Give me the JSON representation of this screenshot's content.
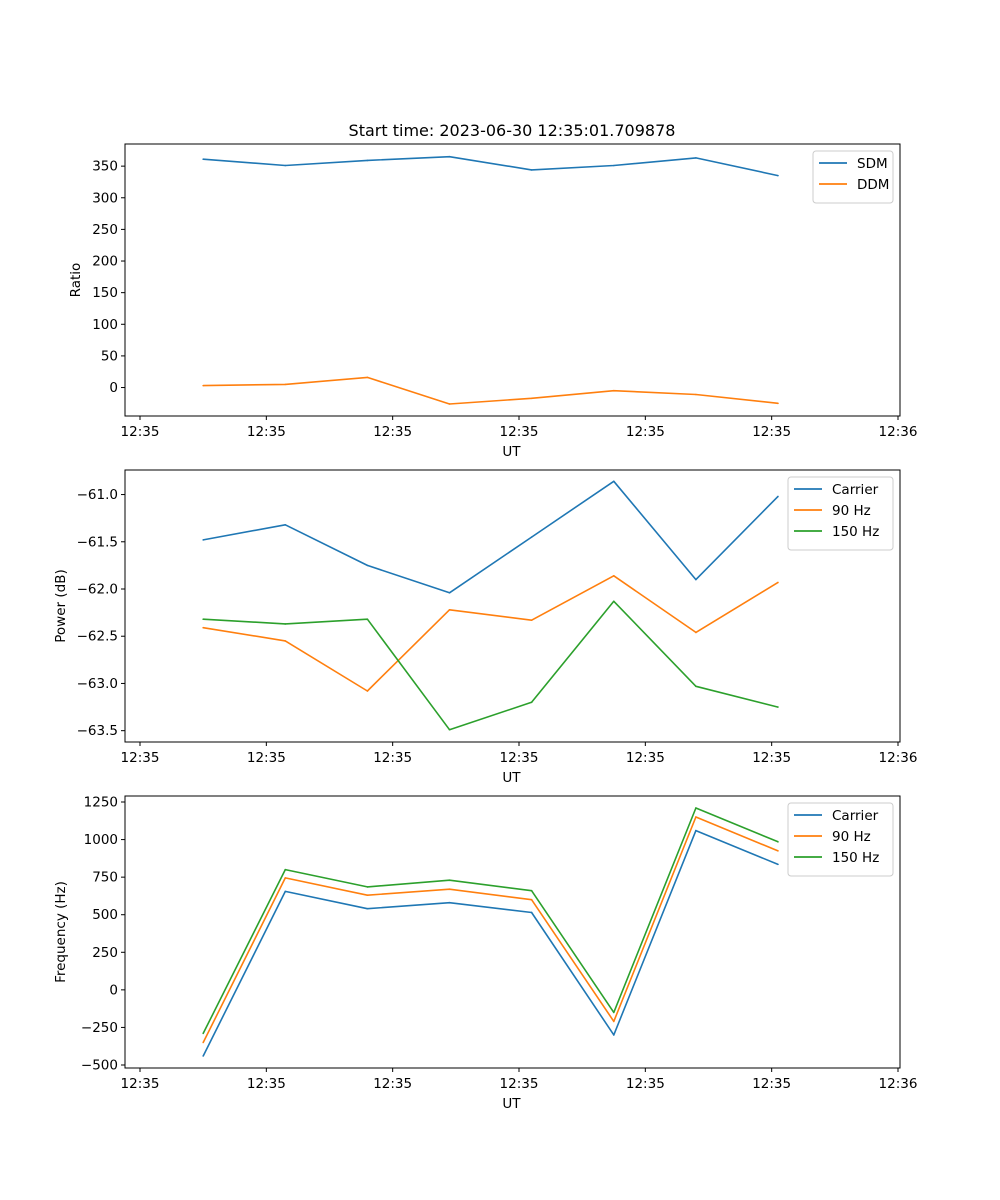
{
  "title": "Start time: 2023-06-30 12:35:01.709878",
  "chart_data": [
    {
      "type": "line",
      "xlabel": "UT",
      "ylabel": "Ratio",
      "xlim_seconds": [
        0,
        60
      ],
      "x_tick_labels": [
        "12:35",
        "12:35",
        "12:35",
        "12:35",
        "12:35",
        "12:35",
        "12:36"
      ],
      "ylim": [
        -45,
        385
      ],
      "y_ticks": [
        0,
        50,
        100,
        150,
        200,
        250,
        300,
        350
      ],
      "y_tick_labels": [
        "0",
        "50",
        "100",
        "150",
        "200",
        "250",
        "300",
        "350"
      ],
      "legend_position": "upper right",
      "grid": false,
      "x_seconds": [
        5,
        11.5,
        18,
        24.5,
        31,
        37.5,
        44,
        50.5
      ],
      "series": [
        {
          "name": "SDM",
          "color": "#1f77b4",
          "values": [
            361,
            351,
            359,
            365,
            344,
            351,
            363,
            335
          ]
        },
        {
          "name": "DDM",
          "color": "#ff7f0e",
          "values": [
            3,
            5,
            16,
            -26,
            -17,
            -5,
            -11,
            -25
          ]
        }
      ]
    },
    {
      "type": "line",
      "xlabel": "UT",
      "ylabel": "Power (dB)",
      "xlim_seconds": [
        0,
        60
      ],
      "x_tick_labels": [
        "12:35",
        "12:35",
        "12:35",
        "12:35",
        "12:35",
        "12:35",
        "12:36"
      ],
      "ylim": [
        -63.62,
        -60.74
      ],
      "y_ticks": [
        -63.5,
        -63.0,
        -62.5,
        -62.0,
        -61.5,
        -61.0
      ],
      "y_tick_labels": [
        "−63.5",
        "−63.0",
        "−62.5",
        "−62.0",
        "−61.5",
        "−61.0"
      ],
      "legend_position": "upper right",
      "grid": false,
      "x_seconds": [
        5,
        11.5,
        18,
        24.5,
        31,
        37.5,
        44,
        50.5
      ],
      "series": [
        {
          "name": "Carrier",
          "color": "#1f77b4",
          "values": [
            -61.48,
            -61.32,
            -61.75,
            -62.04,
            -61.45,
            -60.86,
            -61.9,
            -61.02
          ]
        },
        {
          "name": "90 Hz",
          "color": "#ff7f0e",
          "values": [
            -62.41,
            -62.55,
            -63.08,
            -62.22,
            -62.33,
            -61.86,
            -62.46,
            -61.93
          ]
        },
        {
          "name": "150 Hz",
          "color": "#2ca02c",
          "values": [
            -62.32,
            -62.37,
            -62.32,
            -63.49,
            -63.2,
            -62.13,
            -63.03,
            -63.25
          ]
        }
      ]
    },
    {
      "type": "line",
      "xlabel": "UT",
      "ylabel": "Frequency (Hz)",
      "xlim_seconds": [
        0,
        60
      ],
      "x_tick_labels": [
        "12:35",
        "12:35",
        "12:35",
        "12:35",
        "12:35",
        "12:35",
        "12:36"
      ],
      "ylim": [
        -520,
        1290
      ],
      "y_ticks": [
        -500,
        -250,
        0,
        250,
        500,
        750,
        1000,
        1250
      ],
      "y_tick_labels": [
        "−500",
        "−250",
        "0",
        "250",
        "500",
        "750",
        "1000",
        "1250"
      ],
      "legend_position": "upper right",
      "grid": false,
      "x_seconds": [
        5,
        11.5,
        18,
        24.5,
        31,
        37.5,
        44,
        50.5
      ],
      "series": [
        {
          "name": "Carrier",
          "color": "#1f77b4",
          "values": [
            -440,
            655,
            540,
            580,
            515,
            -300,
            1060,
            835
          ]
        },
        {
          "name": "90 Hz",
          "color": "#ff7f0e",
          "values": [
            -350,
            745,
            630,
            670,
            600,
            -210,
            1150,
            925
          ]
        },
        {
          "name": "150 Hz",
          "color": "#2ca02c",
          "values": [
            -290,
            800,
            685,
            730,
            660,
            -150,
            1210,
            985
          ]
        }
      ]
    }
  ]
}
